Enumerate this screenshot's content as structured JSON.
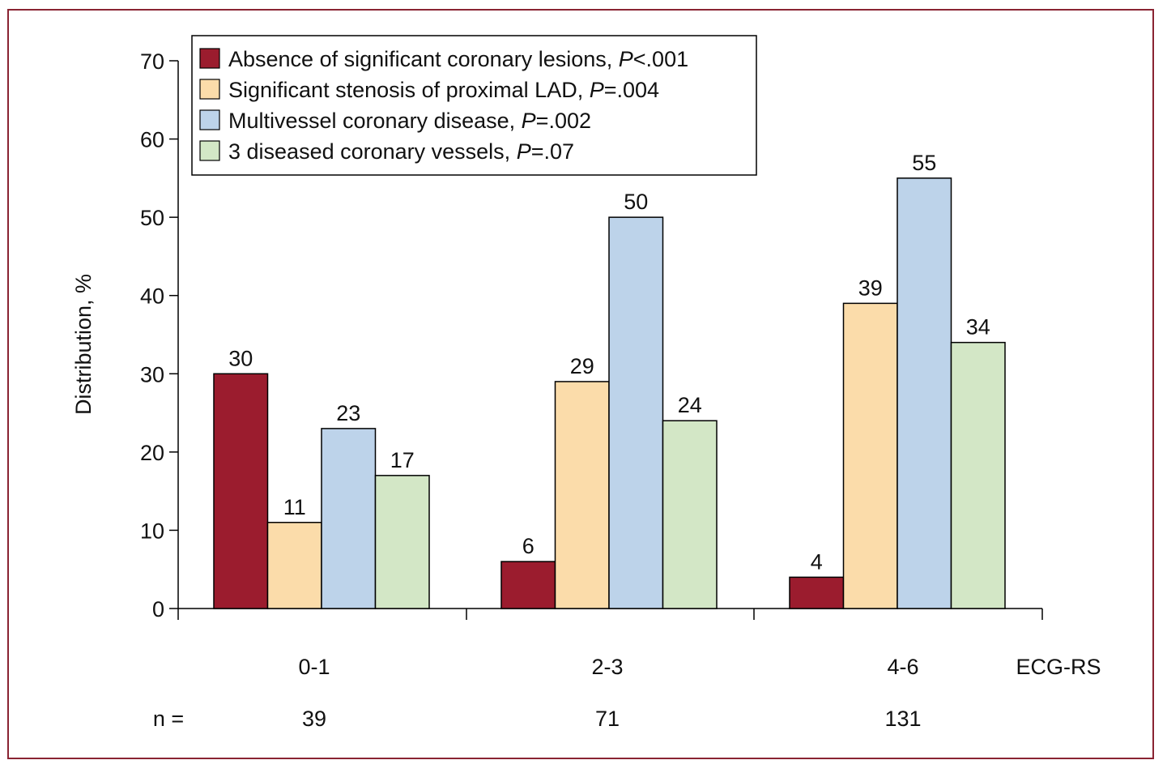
{
  "chart_data": {
    "type": "bar",
    "ylabel": "Distribution, %",
    "xlabel": "ECG-RS",
    "ylim": [
      0,
      70
    ],
    "yticks": [
      0,
      10,
      20,
      30,
      40,
      50,
      60,
      70
    ],
    "categories": [
      "0-1",
      "2-3",
      "4-6"
    ],
    "n_label": "n =",
    "n_values": [
      "39",
      "71",
      "131"
    ],
    "legend_position": "top-left",
    "series": [
      {
        "name": "Absence of significant coronary lesions, ",
        "p_italic": "P",
        "p_rest": "<.001",
        "color": "#9b1c2e",
        "values": [
          30,
          6,
          4
        ]
      },
      {
        "name": "Significant stenosis of proximal LAD, ",
        "p_italic": "P",
        "p_rest": "=.004",
        "color": "#fbdcaa",
        "values": [
          11,
          29,
          39
        ]
      },
      {
        "name": "Multivessel coronary disease, ",
        "p_italic": "P",
        "p_rest": "=.002",
        "color": "#bdd3ea",
        "values": [
          23,
          50,
          55
        ]
      },
      {
        "name": "3 diseased coronary vessels, ",
        "p_italic": "P",
        "p_rest": "=.07",
        "color": "#d3e7c6",
        "values": [
          17,
          24,
          34
        ]
      }
    ]
  }
}
